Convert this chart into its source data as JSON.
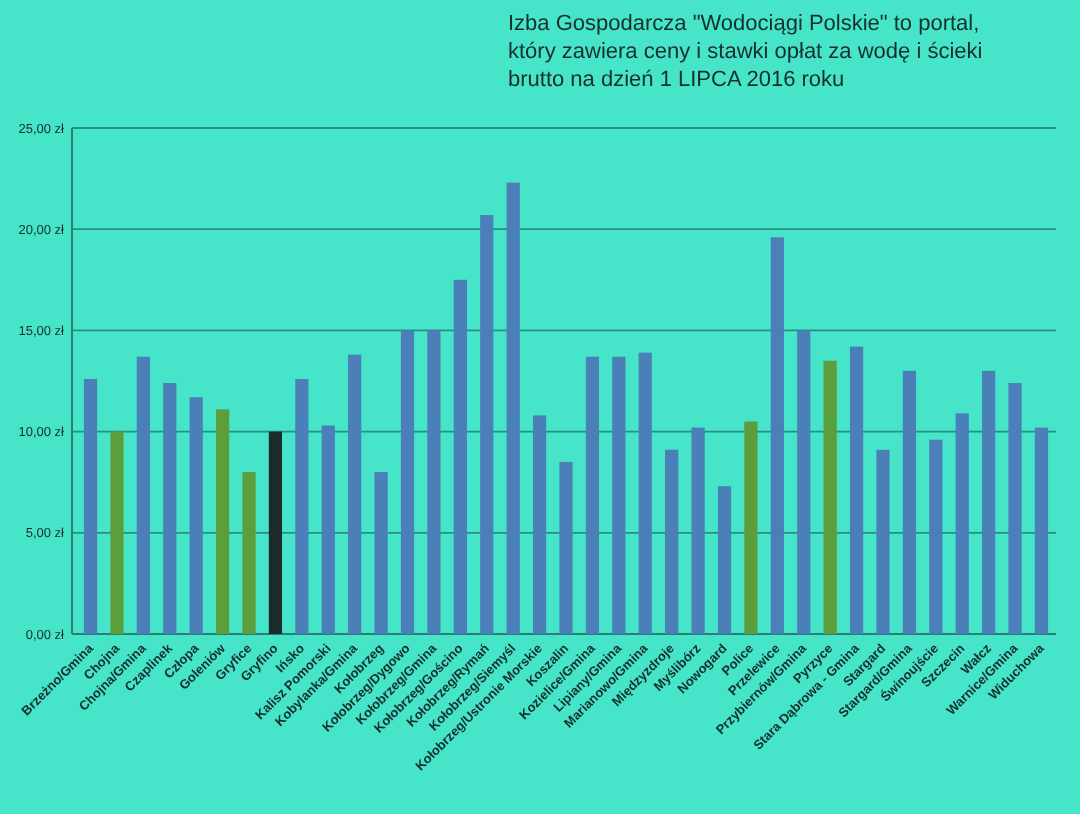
{
  "chart_data": {
    "type": "bar",
    "title": "Izba Gospodarcza \"Wodociągi Polskie\" to portal, który zawiera ceny i stawki opłat za wodę i ścieki brutto na dzień 1 LIPCA 2016 roku",
    "categories": [
      "Brzeżno/Gmina",
      "Chojna",
      "Chojna/Gmina",
      "Czaplinek",
      "Człopa",
      "Goleniów",
      "Gryfice",
      "Gryfino",
      "Ińsko",
      "Kalisz Pomorski",
      "Kobylanka/Gmina",
      "Kołobrzeg",
      "Kołobrzeg/Dygowo",
      "Kołobrzeg/Gmina",
      "Kołobrzeg/Gościno",
      "Kołobrzeg/Rymań",
      "Kołobrzeg/Siemyśl",
      "Kołobrzeg/Ustronie Morskie",
      "Koszalin",
      "Kozielice/Gmina",
      "Lipiany/Gmina",
      "Marianowo/Gmina",
      "Międzyzdroje",
      "Myślibórz",
      "Nowogard",
      "Police",
      "Przelewice",
      "Przybiernów/Gmina",
      "Pyrzyce",
      "Stara Dąbrowa - Gmina",
      "Stargard",
      "Stargard/Gmina",
      "Świnoujście",
      "Szczecin",
      "Wałcz",
      "Warnice/Gmina",
      "Widuchowa"
    ],
    "values": [
      12.6,
      10.0,
      13.7,
      12.4,
      11.7,
      11.1,
      8.0,
      10.0,
      12.6,
      10.3,
      13.8,
      8.0,
      15.0,
      15.0,
      17.5,
      20.7,
      22.3,
      10.8,
      8.5,
      13.7,
      13.7,
      13.9,
      9.1,
      10.2,
      7.3,
      10.5,
      19.6,
      15.0,
      13.5,
      14.2,
      9.1,
      13.0,
      9.6,
      10.9,
      13.0,
      12.4,
      10.2
    ],
    "colors": [
      "#4a7fb8",
      "#5c9e3c",
      "#4a7fb8",
      "#4a7fb8",
      "#4a7fb8",
      "#5c9e3c",
      "#5c9e3c",
      "#1b2b2b",
      "#4a7fb8",
      "#4a7fb8",
      "#4a7fb8",
      "#4a7fb8",
      "#4a7fb8",
      "#4a7fb8",
      "#4a7fb8",
      "#4a7fb8",
      "#4a7fb8",
      "#4a7fb8",
      "#4a7fb8",
      "#4a7fb8",
      "#4a7fb8",
      "#4a7fb8",
      "#4a7fb8",
      "#4a7fb8",
      "#4a7fb8",
      "#5c9e3c",
      "#4a7fb8",
      "#4a7fb8",
      "#5c9e3c",
      "#4a7fb8",
      "#4a7fb8",
      "#4a7fb8",
      "#4a7fb8",
      "#4a7fb8",
      "#4a7fb8",
      "#4a7fb8",
      "#4a7fb8"
    ],
    "ylim": [
      0,
      25
    ],
    "yticks": [
      {
        "value": 0,
        "label": "0,00 zł"
      },
      {
        "value": 5,
        "label": "5,00 zł"
      },
      {
        "value": 10,
        "label": "10,00 zł"
      },
      {
        "value": 15,
        "label": "15,00 zł"
      },
      {
        "value": 20,
        "label": "20,00 zł"
      },
      {
        "value": 25,
        "label": "25,00 zł"
      }
    ],
    "grid": "y"
  }
}
